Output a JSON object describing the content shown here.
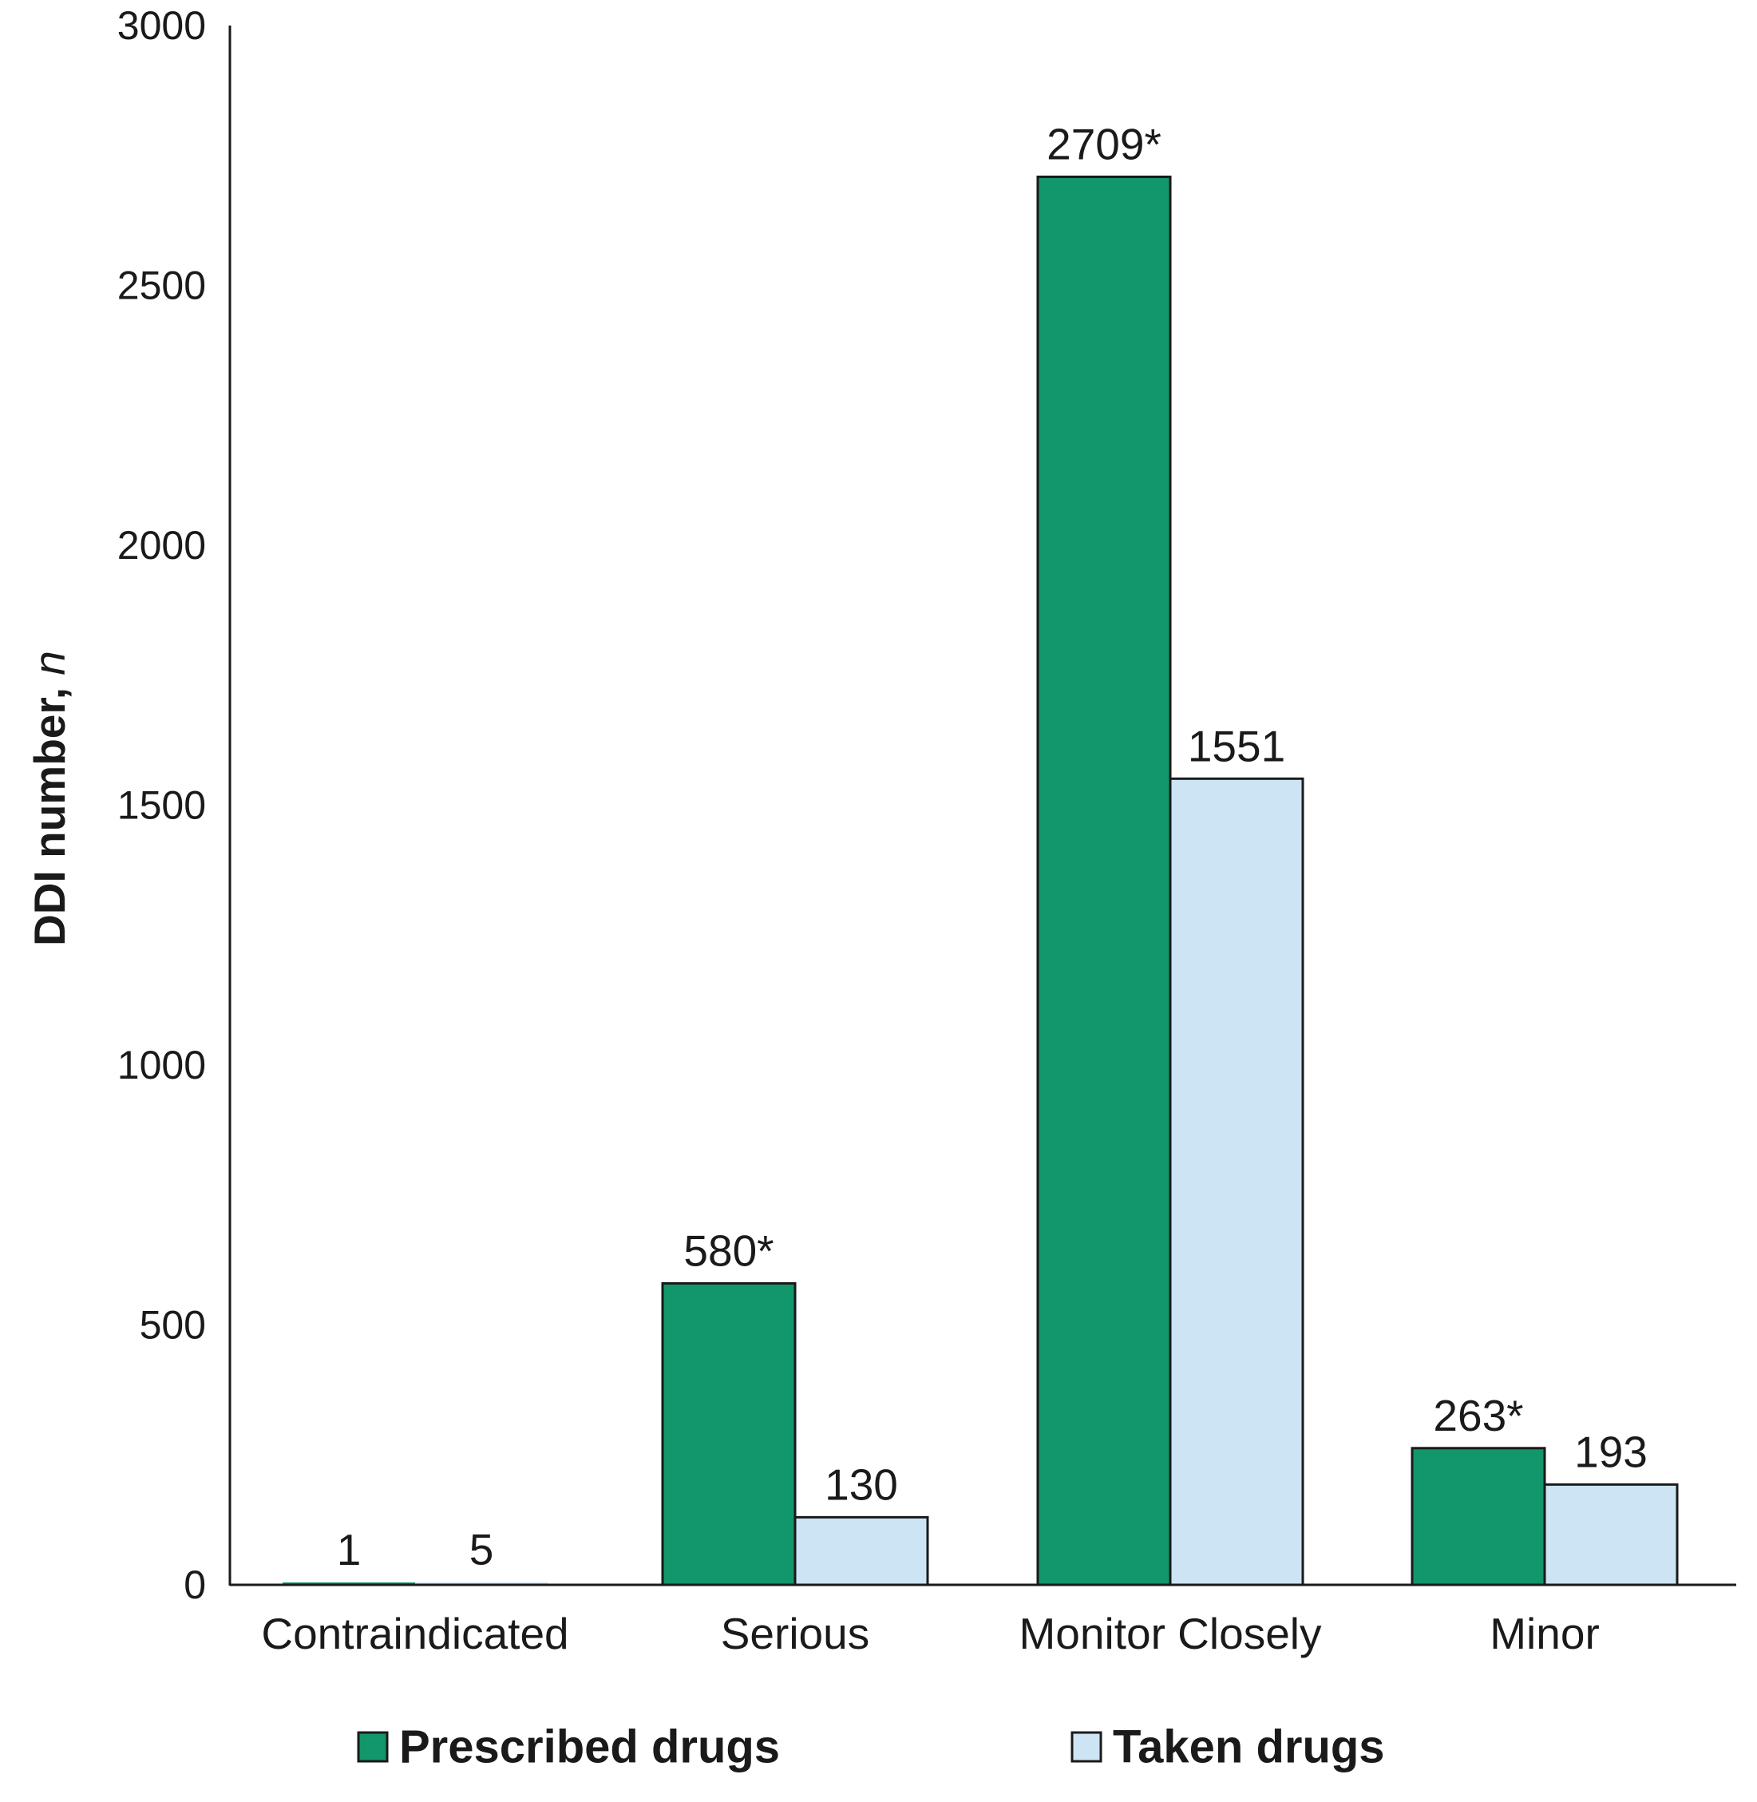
{
  "chart_data": {
    "type": "bar",
    "categories": [
      "Contraindicated",
      "Serious",
      "Monitor Closely",
      "Minor"
    ],
    "series": [
      {
        "name": "Prescribed drugs",
        "values": [
          1,
          580,
          2709,
          263
        ],
        "labels": [
          "1",
          "580*",
          "2709*",
          "263*"
        ],
        "color": "#12966b"
      },
      {
        "name": "Taken drugs",
        "values": [
          5,
          130,
          1551,
          193
        ],
        "labels": [
          "5",
          "130",
          "1551",
          "193"
        ],
        "color": "#cde4f5"
      }
    ],
    "ylabel_main": "DDI number, ",
    "ylabel_italic": "n",
    "ylim": [
      0,
      3000
    ],
    "yticks": [
      "0",
      "500",
      "1000",
      "1500",
      "2000",
      "2500",
      "3000"
    ],
    "grid": false,
    "legend_position": "bottom"
  },
  "colors": {
    "axis": "#1a1a1a",
    "bar_outline": "#1a1a1a"
  }
}
